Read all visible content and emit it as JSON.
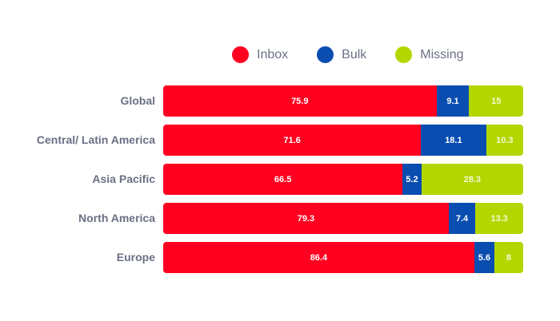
{
  "chart_data": {
    "type": "bar",
    "orientation": "horizontal",
    "stacked": true,
    "title": "",
    "xlabel": "",
    "ylabel": "",
    "xlim": [
      0,
      100
    ],
    "grid": false,
    "legend_position": "top",
    "categories": [
      "Global",
      "Central/ Latin America",
      "Asia Pacific",
      "North America",
      "Europe"
    ],
    "series": [
      {
        "name": "Inbox",
        "color": "#ff0020",
        "values": [
          75.9,
          71.6,
          66.5,
          79.3,
          86.4
        ]
      },
      {
        "name": "Bulk",
        "color": "#0a4db0",
        "values": [
          9.1,
          18.1,
          5.2,
          7.4,
          5.6
        ]
      },
      {
        "name": "Missing",
        "color": "#b4d600",
        "values": [
          15,
          10.3,
          28.3,
          13.3,
          8
        ]
      }
    ]
  },
  "legend": [
    {
      "label": "Inbox",
      "color": "#ff0020"
    },
    {
      "label": "Bulk",
      "color": "#0a4db0"
    },
    {
      "label": "Missing",
      "color": "#b4d600"
    }
  ],
  "rows": [
    {
      "label": "Global",
      "inbox": "75.9",
      "bulk": "9.1",
      "missing": "15"
    },
    {
      "label": "Central/ Latin America",
      "inbox": "71.6",
      "bulk": "18.1",
      "missing": "10.3"
    },
    {
      "label": "Asia Pacific",
      "inbox": "66.5",
      "bulk": "5.2",
      "missing": "28.3"
    },
    {
      "label": "North America",
      "inbox": "79.3",
      "bulk": "7.4",
      "missing": "13.3"
    },
    {
      "label": "Europe",
      "inbox": "86.4",
      "bulk": "5.6",
      "missing": "8"
    }
  ]
}
